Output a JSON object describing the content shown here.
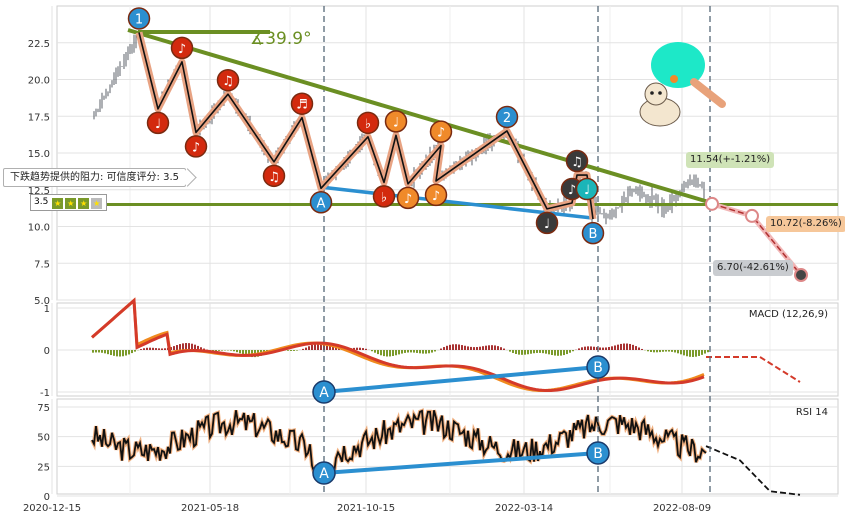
{
  "chart_data": [
    {
      "panel": "price",
      "type": "line",
      "yticks": [
        "5.0",
        "7.5",
        "10.0",
        "12.5",
        "15.0",
        "17.5",
        "20.0",
        "22.5"
      ],
      "ylim": [
        5.0,
        25.0
      ],
      "xticks": [
        "2020-12-15",
        "2021-05-18",
        "2021-10-15",
        "2022-03-14",
        "2022-08-09"
      ],
      "zigzag": [
        {
          "label": "1",
          "y": 23.2
        },
        {
          "label": "♩",
          "y": 18.0
        },
        {
          "label": "♪",
          "y": 21.2
        },
        {
          "label": "♪",
          "y": 16.4
        },
        {
          "label": "♫",
          "y": 19.0
        },
        {
          "label": "♫",
          "y": 14.4
        },
        {
          "label": "♬",
          "y": 17.4
        },
        {
          "label": "A",
          "y": 12.6
        },
        {
          "label": "♭",
          "y": 16.1
        },
        {
          "label": "♭",
          "y": 13.0
        },
        {
          "label": "♩",
          "y": 16.2
        },
        {
          "label": "♪",
          "y": 12.9
        },
        {
          "label": "♪",
          "y": 15.5
        },
        {
          "label": "♪",
          "y": 13.1
        },
        {
          "label": "2",
          "y": 16.5
        },
        {
          "label": "♩",
          "y": 11.2
        },
        {
          "label": "♪",
          "y": 11.6
        },
        {
          "label": "♫",
          "y": 13.5
        },
        {
          "label": "♩",
          "y": 13.5
        },
        {
          "label": "B",
          "y": 10.5
        }
      ],
      "forecast": [
        {
          "label": "11.54(+-1.21%)",
          "y": 11.54
        },
        {
          "label": "10.72(-8.26%)",
          "y": 10.72
        },
        {
          "label": "6.70(-42.61%)",
          "y": 6.7
        }
      ],
      "resistance_level": 11.5,
      "trend_angle": "∡39.9°",
      "resistance_text": "下跌趋势提供的阻力: 可信度评分: 3.5",
      "rating": "3.5"
    },
    {
      "panel": "macd",
      "type": "line",
      "title": "MACD (12,26,9)",
      "yticks": [
        "-1",
        "0",
        "1"
      ],
      "ylim": [
        -1.0,
        1.0
      ],
      "labels": [
        "A",
        "B"
      ]
    },
    {
      "panel": "rsi",
      "type": "line",
      "title": "RSI 14",
      "yticks": [
        "0",
        "25",
        "50",
        "75"
      ],
      "ylim": [
        0,
        80
      ],
      "labels": [
        "A",
        "B"
      ]
    }
  ],
  "colors": {
    "trend": "#6b8f23",
    "support": "#2b8fd0",
    "zigzag_shadow": "#e8a383",
    "macd_line": "#d43a2a",
    "signal_line": "#f08a1e",
    "rsi": "#111111",
    "label_red": "#d32a0e",
    "label_orange": "#f08a2a",
    "label_blue": "#2b8fd0",
    "label_dark": "#3a3a3a"
  }
}
